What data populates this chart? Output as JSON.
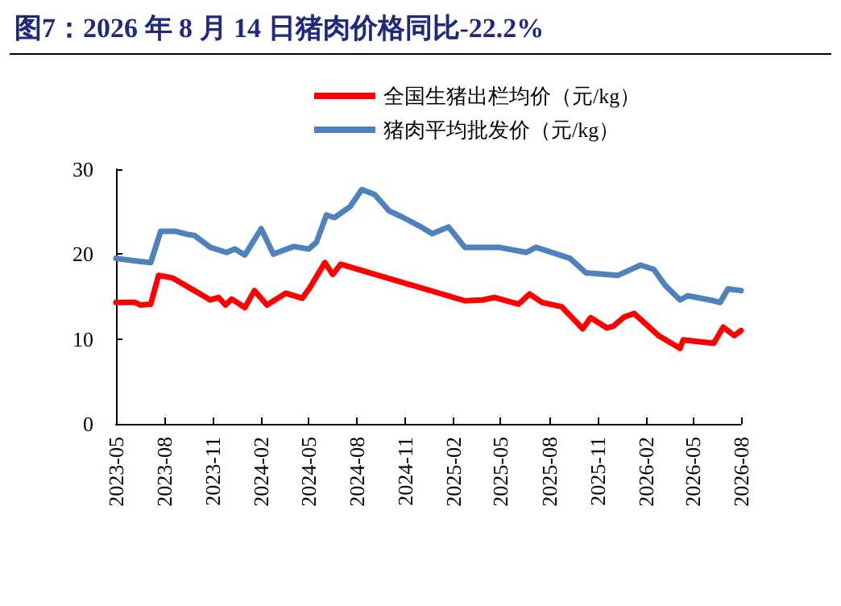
{
  "chart_data": {
    "type": "line",
    "title": "图7：2026 年 8 月 14 日猪肉价格同比-22.2%",
    "legend": "top",
    "grid": false,
    "marker": "none",
    "line_style": "solid",
    "xlim": [
      "2023-05",
      "2026-08"
    ],
    "xticks": [
      "2023-05",
      "2023-08",
      "2023-11",
      "2024-02",
      "2024-05",
      "2024-08",
      "2024-11",
      "2025-02",
      "2025-05",
      "2025-08",
      "2025-11",
      "2026-02",
      "2026-05",
      "2026-08"
    ],
    "ylim": [
      0,
      30
    ],
    "yticks": [
      0,
      10,
      20,
      30
    ],
    "series": [
      {
        "name": "全国生猪出栏均价（元/kg）",
        "color": "#ff0000",
        "x": [
          "2023-05-01",
          "2023-06-07",
          "2023-06-16",
          "2023-07-06",
          "2023-07-21",
          "2023-08-16",
          "2023-09-27",
          "2023-10-27",
          "2023-11-12",
          "2023-11-25",
          "2023-12-07",
          "2024-01-01",
          "2024-01-19",
          "2024-02-12",
          "2024-03-19",
          "2024-04-19",
          "2024-05-04",
          "2024-06-01",
          "2024-06-16",
          "2024-07-01",
          "2025-02-22",
          "2025-03-28",
          "2025-04-19",
          "2025-06-04",
          "2025-06-25",
          "2025-07-19",
          "2025-08-25",
          "2025-10-04",
          "2025-10-19",
          "2025-11-19",
          "2025-12-01",
          "2025-12-22",
          "2026-01-10",
          "2026-02-25",
          "2026-04-07",
          "2026-04-13",
          "2026-06-10",
          "2026-06-28",
          "2026-07-19",
          "2026-08-01"
        ],
        "values": [
          14.3,
          14.3,
          14.0,
          14.1,
          17.5,
          17.2,
          15.7,
          14.6,
          14.9,
          14.0,
          14.7,
          13.7,
          15.7,
          14.0,
          15.4,
          14.8,
          16.1,
          19.0,
          17.6,
          18.8,
          14.5,
          14.6,
          14.9,
          14.1,
          15.3,
          14.3,
          13.8,
          11.2,
          12.5,
          11.3,
          11.5,
          12.6,
          13.0,
          10.4,
          8.9,
          9.9,
          9.5,
          11.4,
          10.4,
          11.0
        ]
      },
      {
        "name": "猪肉平均批发价（元/kg）",
        "color": "#4f81bd",
        "x": [
          "2023-05-01",
          "2023-06-07",
          "2023-07-06",
          "2023-07-25",
          "2023-08-21",
          "2023-09-16",
          "2023-09-27",
          "2023-10-27",
          "2023-11-27",
          "2023-12-13",
          "2024-01-01",
          "2024-02-01",
          "2024-02-24",
          "2024-04-03",
          "2024-05-01",
          "2024-05-16",
          "2024-06-04",
          "2024-06-19",
          "2024-07-19",
          "2024-08-10",
          "2024-09-04",
          "2024-10-01",
          "2024-10-25",
          "2024-11-28",
          "2024-12-22",
          "2025-01-22",
          "2025-02-22",
          "2025-04-28",
          "2025-06-19",
          "2025-07-07",
          "2025-09-10",
          "2025-10-10",
          "2025-12-10",
          "2026-01-22",
          "2026-02-16",
          "2026-03-10",
          "2026-04-07",
          "2026-04-22",
          "2026-06-10",
          "2026-06-22",
          "2026-07-07",
          "2026-08-01"
        ],
        "values": [
          19.5,
          19.2,
          19.0,
          22.7,
          22.7,
          22.3,
          22.2,
          20.8,
          20.2,
          20.6,
          19.9,
          23.0,
          20.0,
          20.9,
          20.6,
          21.4,
          24.6,
          24.3,
          25.6,
          27.6,
          27.0,
          25.1,
          24.4,
          23.3,
          22.4,
          23.2,
          20.8,
          20.8,
          20.2,
          20.8,
          19.5,
          17.8,
          17.5,
          18.7,
          18.2,
          16.3,
          14.6,
          15.1,
          14.5,
          14.3,
          15.9,
          15.7
        ]
      }
    ]
  }
}
